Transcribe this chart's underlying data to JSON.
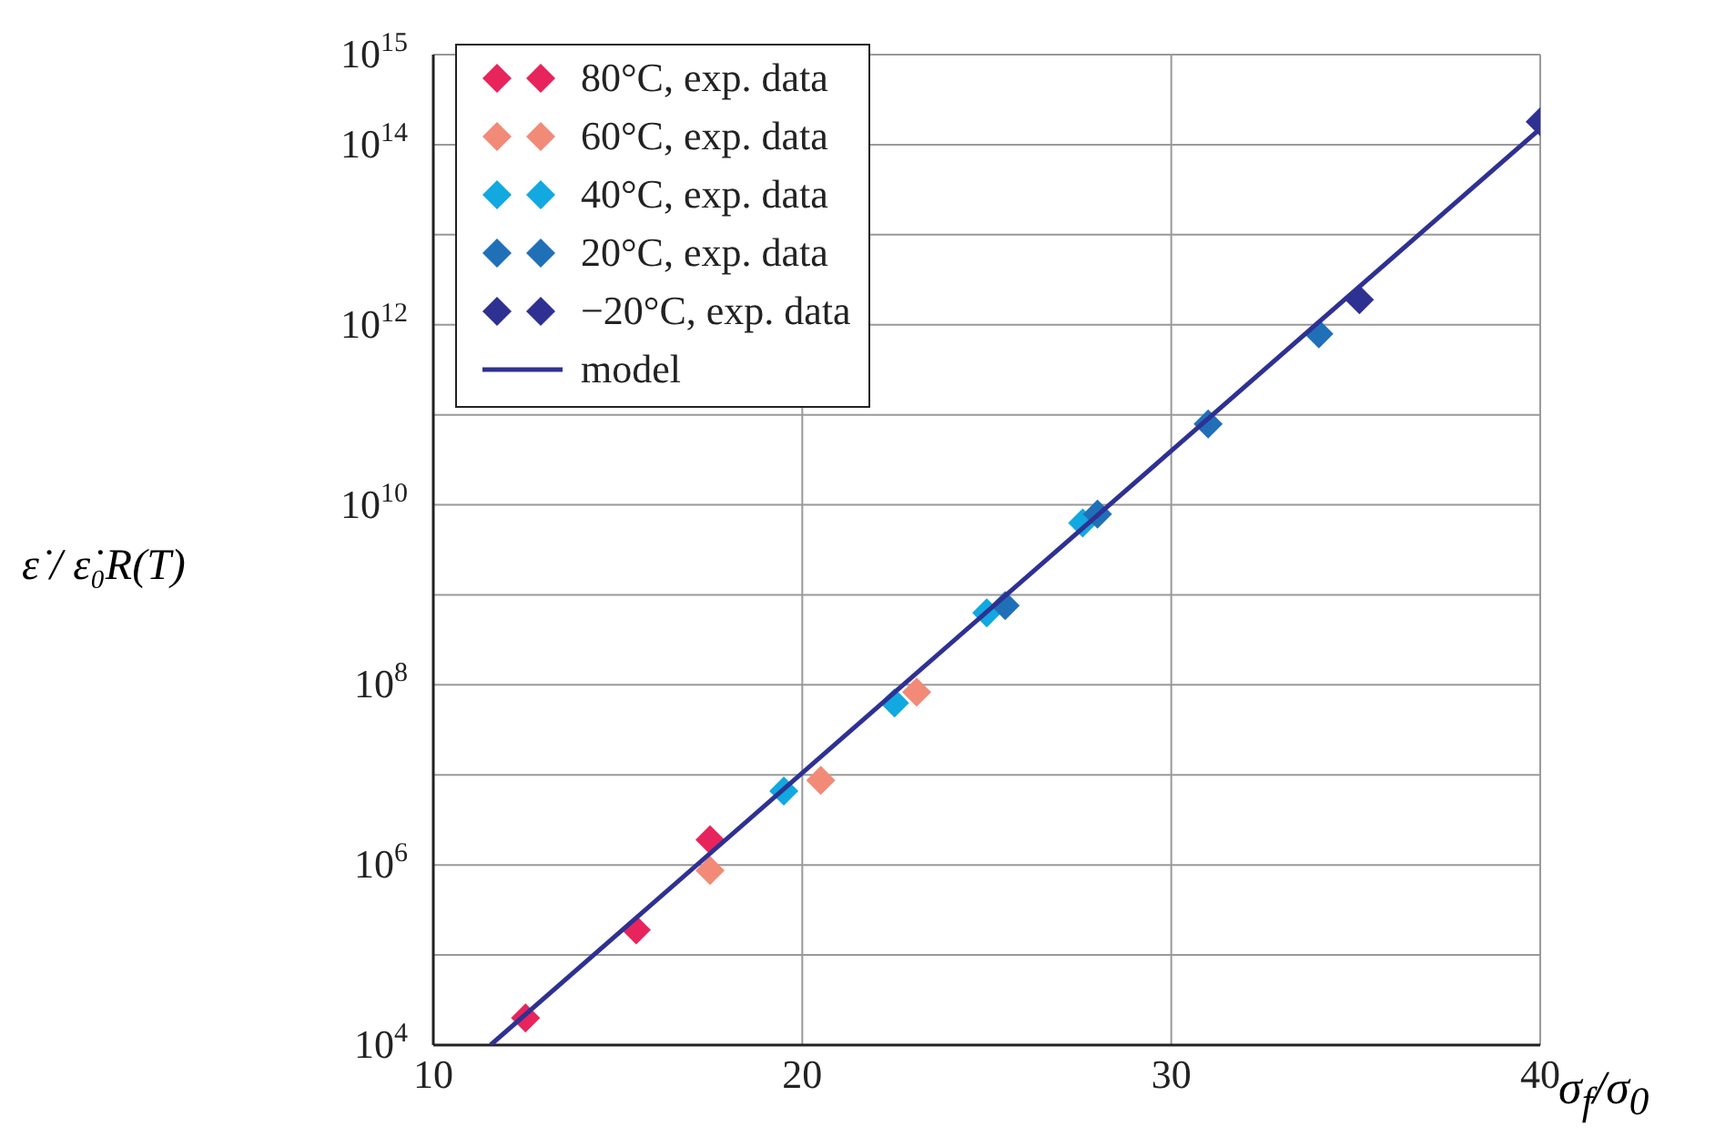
{
  "chart_data": {
    "type": "scatter",
    "xlabel": "σ$_{f}$/σ$_{0}$",
    "ylabel": "ε̇ / ε̇₀R(T)",
    "log": "y",
    "grid": true,
    "legend": "top left",
    "marker": "diamond",
    "xlim": [
      10,
      40
    ],
    "xticks": [
      10,
      20,
      30,
      40
    ],
    "ylim": [
      10000,
      1000000000000000.0
    ],
    "yticks": [
      {
        "value": 10000,
        "label": "10$^{4}$"
      },
      {
        "value": 100000,
        "label": null
      },
      {
        "value": 1000000,
        "label": "10$^{6}$"
      },
      {
        "value": 10000000,
        "label": null
      },
      {
        "value": 100000000,
        "label": "10$^{8}$"
      },
      {
        "value": 1000000000,
        "label": null
      },
      {
        "value": 10000000000,
        "label": "10$^{10}$"
      },
      {
        "value": 100000000000,
        "label": null
      },
      {
        "value": 1000000000000,
        "label": "10$^{12}$"
      },
      {
        "value": 10000000000000,
        "label": null
      },
      {
        "value": 100000000000000,
        "label": "10$^{14}$"
      },
      {
        "value": 1000000000000000,
        "label": "10$^{15}$"
      }
    ],
    "series": [
      {
        "name": "80°C, exp. data",
        "color": "#e8245c",
        "x": [
          12.5,
          15.5,
          17.5
        ],
        "values": [
          20000,
          190000,
          1900000
        ]
      },
      {
        "name": "60°C, exp. data",
        "color": "#f28a78",
        "x": [
          17.5,
          20.5,
          23.1
        ],
        "values": [
          870000,
          8700000,
          83000000
        ]
      },
      {
        "name": "40°C, exp. data",
        "color": "#12a8e0",
        "x": [
          19.5,
          22.5,
          25.0,
          27.6
        ],
        "values": [
          6600000,
          63000000,
          630000000,
          6300000000
        ]
      },
      {
        "name": "20°C, exp. data",
        "color": "#2070b8",
        "x": [
          25.5,
          28.0,
          31.0,
          34.0
        ],
        "values": [
          760000000,
          7900000000,
          79000000000,
          790000000000
        ]
      },
      {
        "name": "−20°C, exp. data",
        "color": "#2e3192",
        "x": [
          35.1,
          40
        ],
        "values": [
          1900000000000,
          180000000000000
        ]
      },
      {
        "name": "model",
        "type": "line",
        "marker": "none",
        "color": "#2e3192",
        "x": [
          11.55,
          40
        ],
        "values": [
          10000,
          150000000000000
        ]
      }
    ]
  }
}
